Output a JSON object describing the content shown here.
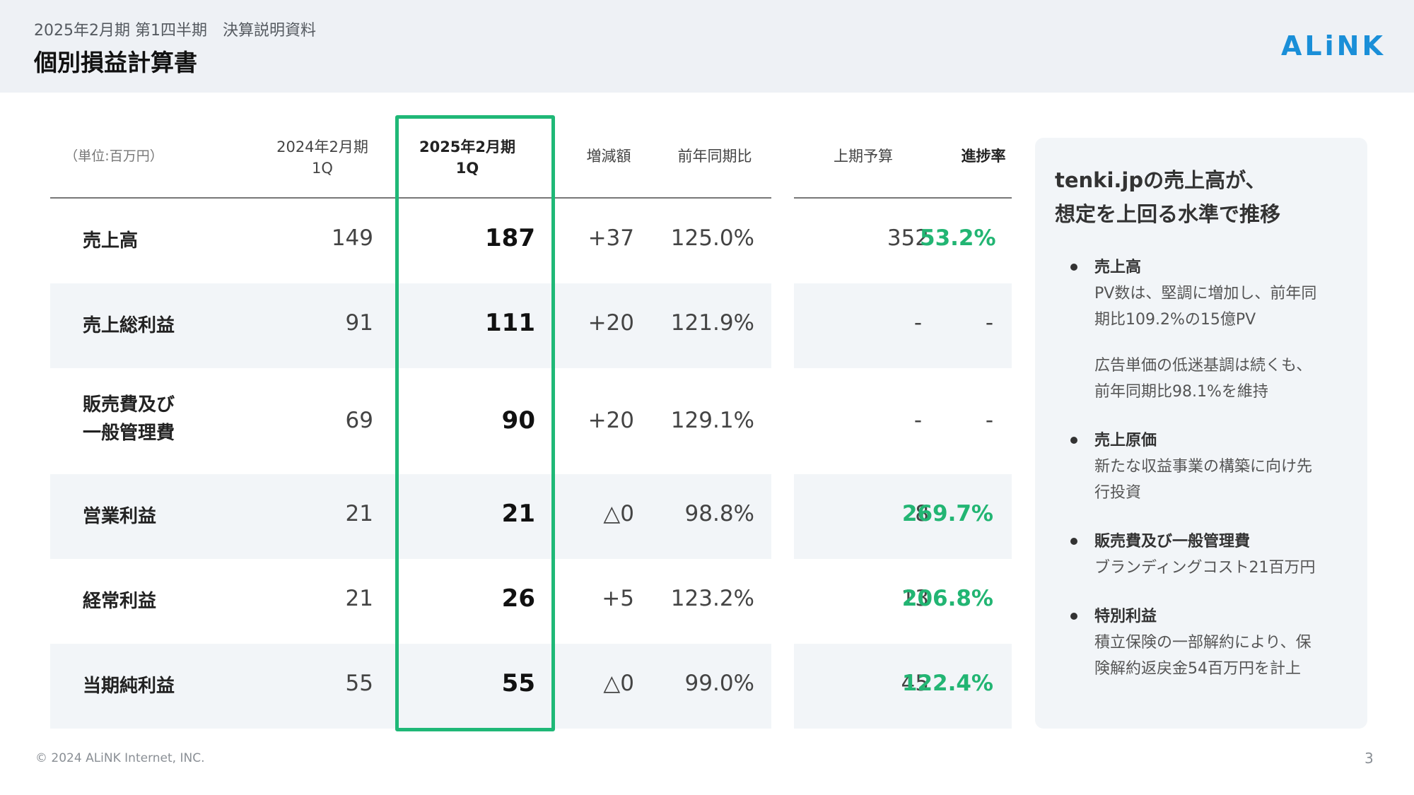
{
  "header": {
    "doc_title": "2025年2月期 第1四半期　決算説明資料",
    "page_title": "個別損益計算書",
    "logo_text": "ALiNK",
    "brand_color": "#1a8fd8"
  },
  "table": {
    "unit_label": "（単位:百万円）",
    "col_prev_line1": "2024年2月期",
    "col_prev_line2": "1Q",
    "col_curr_line1": "2025年2月期",
    "col_curr_line2": "1Q",
    "col_diff": "増減額",
    "col_yoy": "前年同期比",
    "col_budget": "上期予算",
    "col_progress": "進捗率",
    "rows": [
      {
        "label": "売上高",
        "label2": "",
        "prev": "149",
        "curr": "187",
        "diff": "+37",
        "yoy": "125.0%",
        "budget": "352",
        "progress": "53.2%"
      },
      {
        "label": "売上総利益",
        "label2": "",
        "prev": "91",
        "curr": "111",
        "diff": "+20",
        "yoy": "121.9%",
        "budget": "-",
        "progress": "-"
      },
      {
        "label": "販売費及び",
        "label2": "一般管理費",
        "prev": "69",
        "curr": "90",
        "diff": "+20",
        "yoy": "129.1%",
        "budget": "-",
        "progress": "-"
      },
      {
        "label": "営業利益",
        "label2": "",
        "prev": "21",
        "curr": "21",
        "diff": "△0",
        "yoy": "98.8%",
        "budget": "8",
        "progress": "269.7%"
      },
      {
        "label": "経常利益",
        "label2": "",
        "prev": "21",
        "curr": "26",
        "diff": "+5",
        "yoy": "123.2%",
        "budget": "13",
        "progress": "206.8%"
      },
      {
        "label": "当期純利益",
        "label2": "",
        "prev": "55",
        "curr": "55",
        "diff": "△0",
        "yoy": "99.0%",
        "budget": "45",
        "progress": "122.4%"
      }
    ],
    "highlight_color": "#1fb877",
    "progress_color": "#22b573"
  },
  "side": {
    "heading_line1": "tenki.jpの売上高が、",
    "heading_line2": "想定を上回る水準で推移",
    "items": [
      {
        "title": "売上高",
        "text": "PV数は、堅調に増加し、前年同\n期比109.2%の15億PV",
        "text2": "広告単価の低迷基調は続くも、\n前年同期比98.1%を維持"
      },
      {
        "title": "売上原価",
        "text": "新たな収益事業の構築に向け先\n行投資",
        "text2": ""
      },
      {
        "title": "販売費及び一般管理費",
        "text": "ブランディングコスト21百万円",
        "text2": ""
      },
      {
        "title": "特別利益",
        "text": "積立保険の一部解約により、保\n険解約返戻金54百万円を計上",
        "text2": ""
      }
    ]
  },
  "footer": {
    "copyright": "© 2024 ALiNK Internet, INC.",
    "page_number": "3"
  }
}
